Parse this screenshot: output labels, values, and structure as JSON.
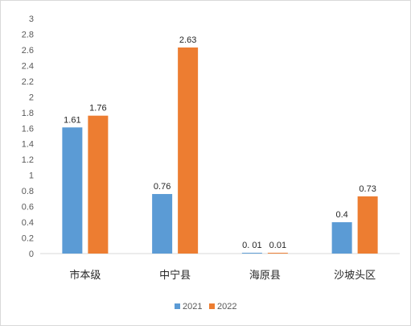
{
  "chart_data": {
    "type": "bar",
    "categories": [
      "市本级",
      "中宁县",
      "海原县",
      "沙坡头区"
    ],
    "series": [
      {
        "name": "2021",
        "values": [
          1.61,
          0.76,
          0.01,
          0.4
        ],
        "labels": [
          "1.61",
          "0.76",
          "0. 01",
          "0.4"
        ],
        "color": "#5b9bd5"
      },
      {
        "name": "2022",
        "values": [
          1.76,
          2.63,
          0.01,
          0.73
        ],
        "labels": [
          "1.76",
          "2.63",
          "0.01",
          "0.73"
        ],
        "color": "#ed7d31"
      }
    ],
    "ylim": [
      0,
      3
    ],
    "yticks": [
      "0",
      "0.2",
      "0.4",
      "0.6",
      "0.8",
      "1",
      "1.2",
      "1.4",
      "1.6",
      "1.8",
      "2",
      "2.2",
      "2.4",
      "2.6",
      "2.8",
      "3"
    ],
    "grid": false,
    "legend": "bottom",
    "title": "",
    "xlabel": "",
    "ylabel": ""
  }
}
